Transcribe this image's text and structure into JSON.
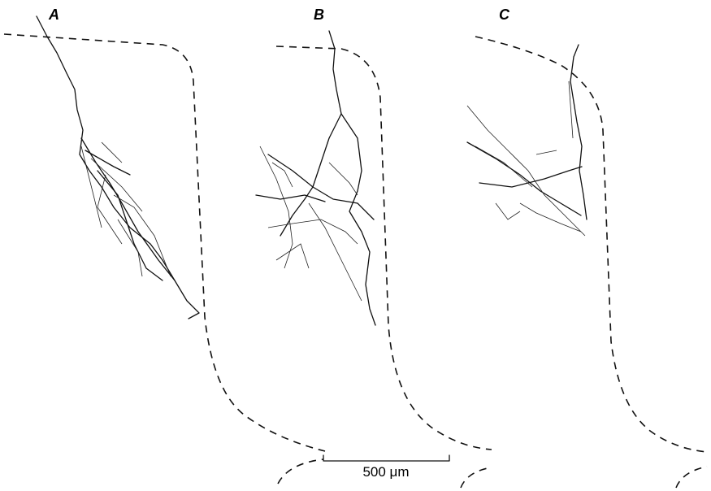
{
  "panels": [
    {
      "label": "A"
    },
    {
      "label": "B"
    },
    {
      "label": "C"
    }
  ],
  "scale_bar": {
    "label": "500 μm"
  }
}
